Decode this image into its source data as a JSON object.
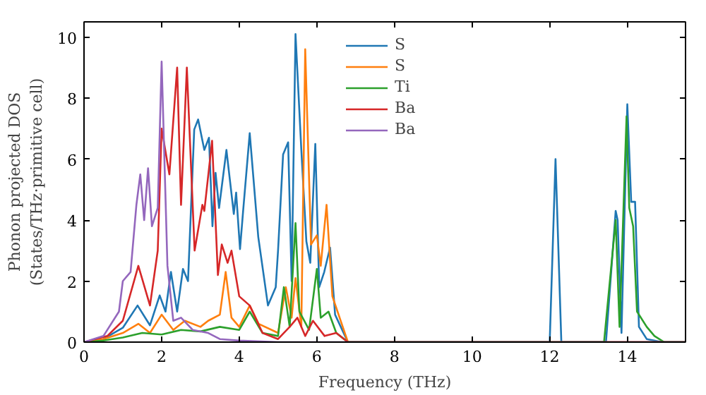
{
  "chart_data": {
    "type": "line",
    "xlabel": "Frequency (THz)",
    "ylabel": "Phonon projected DOS\n(States/THz·primitive cell)",
    "xlim": [
      0,
      15.5
    ],
    "ylim": [
      0,
      10.5
    ],
    "xticks": [
      0,
      2,
      4,
      6,
      8,
      10,
      12,
      14
    ],
    "yticks": [
      0,
      2,
      4,
      6,
      8,
      10
    ],
    "grid": false,
    "legend": "top",
    "series": [
      {
        "name": "S",
        "color": "#1f77b4",
        "x": [
          0,
          0.5,
          1.0,
          1.38,
          1.7,
          1.95,
          2.1,
          2.24,
          2.4,
          2.55,
          2.68,
          2.84,
          2.94,
          3.1,
          3.22,
          3.31,
          3.39,
          3.48,
          3.67,
          3.86,
          3.92,
          4.02,
          4.1,
          4.27,
          4.49,
          4.74,
          4.94,
          5.0,
          5.13,
          5.26,
          5.35,
          5.45,
          5.6,
          5.73,
          5.83,
          5.96,
          6.06,
          6.19,
          6.34,
          6.47,
          6.8,
          12.0,
          12.15,
          12.3,
          13.45,
          13.7,
          13.75,
          13.85,
          14.0,
          14.1,
          14.2,
          14.3,
          14.5,
          14.9,
          15.5
        ],
        "values": [
          0,
          0.1,
          0.47,
          1.2,
          0.55,
          1.53,
          1.0,
          2.3,
          1.0,
          2.4,
          2.0,
          6.97,
          7.3,
          6.3,
          6.7,
          3.8,
          5.55,
          4.4,
          6.3,
          4.2,
          4.9,
          3.05,
          4.3,
          6.85,
          3.45,
          1.2,
          1.8,
          3.0,
          6.15,
          6.55,
          2.0,
          10.1,
          6.3,
          3.3,
          2.6,
          6.5,
          1.8,
          2.3,
          3.1,
          0.9,
          0,
          0,
          6.0,
          0,
          0,
          4.3,
          4.0,
          0.3,
          7.8,
          4.6,
          4.6,
          0.5,
          0.1,
          0,
          0
        ]
      },
      {
        "name": "S",
        "color": "#ff7f0e",
        "x": [
          0,
          0.5,
          1.0,
          1.4,
          1.7,
          2.0,
          2.3,
          2.6,
          3.0,
          3.2,
          3.5,
          3.65,
          3.8,
          4.0,
          4.27,
          4.5,
          5.0,
          5.2,
          5.35,
          5.45,
          5.6,
          5.7,
          5.85,
          6.0,
          6.1,
          6.25,
          6.4,
          6.8,
          15.5
        ],
        "values": [
          0,
          0.1,
          0.3,
          0.6,
          0.3,
          0.9,
          0.4,
          0.7,
          0.5,
          0.7,
          0.9,
          2.3,
          0.8,
          0.5,
          1.2,
          0.6,
          0.3,
          1.8,
          0.8,
          2.1,
          0.5,
          9.6,
          3.2,
          3.5,
          2.5,
          4.5,
          1.5,
          0,
          0
        ]
      },
      {
        "name": "Ti",
        "color": "#2ca02c",
        "x": [
          0,
          0.5,
          1.0,
          1.5,
          2.0,
          2.5,
          3.0,
          3.5,
          4.0,
          4.27,
          4.6,
          5.0,
          5.15,
          5.3,
          5.45,
          5.55,
          5.8,
          6.0,
          6.1,
          6.3,
          6.5,
          6.8,
          13.4,
          13.7,
          13.8,
          13.98,
          14.05,
          14.15,
          14.25,
          14.5,
          14.7,
          14.95,
          15.5
        ],
        "values": [
          0,
          0.05,
          0.15,
          0.3,
          0.25,
          0.4,
          0.35,
          0.5,
          0.4,
          1.0,
          0.3,
          0.2,
          1.8,
          0.5,
          3.9,
          1.0,
          0.4,
          2.4,
          0.8,
          1.0,
          0.3,
          0,
          0,
          4.0,
          0.5,
          7.4,
          4.4,
          3.8,
          1.0,
          0.5,
          0.2,
          0,
          0
        ]
      },
      {
        "name": "Ba",
        "color": "#d62728",
        "x": [
          0,
          0.6,
          1.0,
          1.4,
          1.7,
          1.9,
          2.0,
          2.2,
          2.4,
          2.5,
          2.65,
          2.85,
          3.05,
          3.1,
          3.3,
          3.45,
          3.55,
          3.7,
          3.8,
          4.0,
          4.27,
          4.6,
          5.0,
          5.3,
          5.5,
          5.7,
          5.9,
          6.2,
          6.5,
          6.8,
          15.5
        ],
        "values": [
          0,
          0.2,
          0.7,
          2.5,
          1.2,
          3.0,
          7.0,
          5.5,
          9.0,
          4.5,
          9.0,
          3.0,
          4.5,
          4.3,
          6.6,
          2.2,
          3.2,
          2.6,
          3.0,
          1.5,
          1.2,
          0.3,
          0.1,
          0.5,
          0.8,
          0.2,
          0.7,
          0.2,
          0.3,
          0,
          0
        ]
      },
      {
        "name": "Ba",
        "color": "#9467bd",
        "x": [
          0,
          0.5,
          0.9,
          1.0,
          1.2,
          1.35,
          1.45,
          1.55,
          1.65,
          1.75,
          1.9,
          2.0,
          2.15,
          2.3,
          2.5,
          2.8,
          3.2,
          3.5,
          4.0,
          5.0,
          15.5
        ],
        "values": [
          0,
          0.2,
          1.0,
          2.0,
          2.3,
          4.5,
          5.5,
          4.0,
          5.7,
          3.8,
          4.4,
          9.2,
          2.5,
          0.7,
          0.8,
          0.4,
          0.3,
          0.1,
          0.05,
          0,
          0
        ]
      }
    ]
  }
}
